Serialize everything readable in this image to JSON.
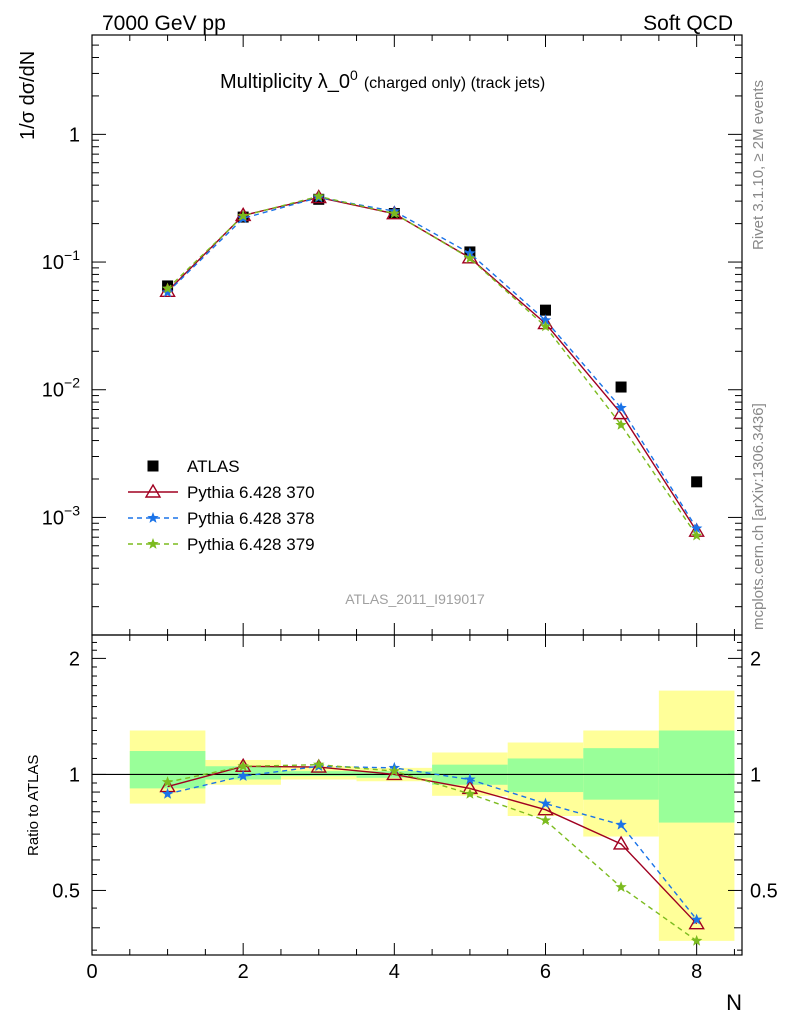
{
  "header": {
    "left": "7000 GeV pp",
    "right": "Soft QCD"
  },
  "side_labels": {
    "rivet": "Rivet 3.1.10, ≥ 2M events",
    "mcplots": "mcplots.cern.ch [arXiv:1306.3436]"
  },
  "main_panel": {
    "title_main": "Multiplicity λ_0",
    "title_sup": "0",
    "title_small": "(charged only) (track jets)",
    "ylabel": "1/σ dσ/dN",
    "watermark": "ATLAS_2011_I919017",
    "yticks": [
      {
        "base": "10",
        "exp": "−3",
        "value": 0.001
      },
      {
        "base": "10",
        "exp": "−2",
        "value": 0.01
      },
      {
        "base": "10",
        "exp": "−1",
        "value": 0.1
      },
      {
        "base": "1",
        "exp": "",
        "value": 1
      }
    ]
  },
  "ratio_panel": {
    "ylabel": "Ratio to ATLAS",
    "yticks": [
      "0.5",
      "1",
      "2"
    ],
    "ytick_values": [
      0.5,
      1,
      2
    ]
  },
  "x_axis": {
    "label": "N",
    "ticks": [
      "0",
      "2",
      "4",
      "6",
      "8"
    ],
    "tick_values": [
      0,
      2,
      4,
      6,
      8
    ]
  },
  "legend": [
    {
      "label": "ATLAS",
      "color": "#000000",
      "marker": "square",
      "line": "none"
    },
    {
      "label": "Pythia 6.428 370",
      "color": "#a00020",
      "marker": "open-triangle",
      "line": "solid"
    },
    {
      "label": "Pythia 6.428 378",
      "color": "#1a73e8",
      "marker": "star",
      "line": "dashed"
    },
    {
      "label": "Pythia 6.428 379",
      "color": "#7cbb1f",
      "marker": "star",
      "line": "dashed"
    }
  ],
  "chart_data": {
    "type": "scatter",
    "title": "Multiplicity λ_0^0 (charged only) (track jets)",
    "xlabel": "N",
    "ylabel": "1/σ dσ/dN",
    "xlim": [
      0,
      8.6
    ],
    "ylim": [
      0.00012,
      6
    ],
    "yscale": "log",
    "x": [
      1,
      2,
      3,
      4,
      5,
      6,
      7,
      8
    ],
    "series": [
      {
        "name": "ATLAS",
        "values": [
          0.065,
          0.225,
          0.31,
          0.24,
          0.12,
          0.042,
          0.0105,
          0.0019
        ]
      },
      {
        "name": "Pythia 6.428 370",
        "values": [
          0.059,
          0.232,
          0.32,
          0.239,
          0.108,
          0.033,
          0.0065,
          0.00078
        ]
      },
      {
        "name": "Pythia 6.428 378",
        "values": [
          0.058,
          0.22,
          0.32,
          0.25,
          0.117,
          0.035,
          0.0072,
          0.00082
        ]
      },
      {
        "name": "Pythia 6.428 379",
        "values": [
          0.062,
          0.23,
          0.327,
          0.24,
          0.107,
          0.0313,
          0.0053,
          0.00072
        ]
      }
    ],
    "ratio": {
      "ylabel": "Ratio to ATLAS",
      "yscale": "log",
      "ylim": [
        0.34,
        2.3
      ],
      "x_edges": [
        0.5,
        1.5,
        2.5,
        3.5,
        4.5,
        5.5,
        6.5,
        7.5,
        8.5
      ],
      "band_outer": [
        [
          0.84,
          1.3
        ],
        [
          0.94,
          1.09
        ],
        [
          0.97,
          1.05
        ],
        [
          0.96,
          1.04
        ],
        [
          0.88,
          1.14
        ],
        [
          0.78,
          1.21
        ],
        [
          0.69,
          1.3
        ],
        [
          0.37,
          1.65
        ]
      ],
      "band_inner": [
        [
          0.92,
          1.15
        ],
        [
          0.97,
          1.05
        ],
        [
          0.99,
          1.02
        ],
        [
          0.98,
          1.02
        ],
        [
          0.94,
          1.06
        ],
        [
          0.9,
          1.1
        ],
        [
          0.86,
          1.17
        ],
        [
          0.75,
          1.3
        ]
      ],
      "series": [
        {
          "name": "Pythia 6.428 370",
          "values": [
            0.93,
            1.05,
            1.045,
            1.0,
            0.92,
            0.81,
            0.66,
            0.41
          ]
        },
        {
          "name": "Pythia 6.428 378",
          "values": [
            0.89,
            0.99,
            1.05,
            1.04,
            0.97,
            0.84,
            0.74,
            0.42
          ]
        },
        {
          "name": "Pythia 6.428 379",
          "values": [
            0.955,
            1.05,
            1.06,
            1.02,
            0.89,
            0.76,
            0.51,
            0.37
          ]
        }
      ]
    }
  }
}
